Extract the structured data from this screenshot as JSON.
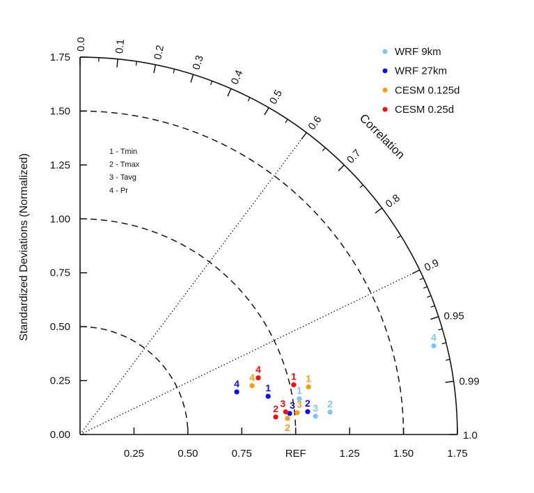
{
  "chart_data": {
    "type": "taylor",
    "ylabel": "Standardized Deviations (Normalized)",
    "corr_axis_label": "Correlation",
    "std_range": [
      0,
      1.75
    ],
    "y_ticks": [
      "0.00",
      "0.25",
      "0.50",
      "0.75",
      "1.00",
      "1.25",
      "1.50",
      "1.75"
    ],
    "y_tick_values": [
      0,
      0.25,
      0.5,
      0.75,
      1.0,
      1.25,
      1.5,
      1.75
    ],
    "x_ticks": [
      "0.25",
      "0.50",
      "0.75",
      "REF",
      "1.25",
      "1.50",
      "1.75"
    ],
    "x_tick_values": [
      0.25,
      0.5,
      0.75,
      1.0,
      1.25,
      1.5,
      1.75
    ],
    "corr_ticks": [
      "0.0",
      "0.1",
      "0.2",
      "0.3",
      "0.4",
      "0.5",
      "0.6",
      "0.7",
      "0.8",
      "0.9",
      "0.95",
      "0.99",
      "1.0"
    ],
    "corr_tick_values": [
      0,
      0.1,
      0.2,
      0.3,
      0.4,
      0.5,
      0.6,
      0.7,
      0.8,
      0.9,
      0.95,
      0.99,
      1.0
    ],
    "std_arcs_dashed": [
      0.5,
      1.0,
      1.5
    ],
    "corr_rays_dotted": [
      0.6,
      0.9
    ],
    "variables": [
      {
        "id": "1",
        "text": "1 - Tmin"
      },
      {
        "id": "2",
        "text": "2 - Tmax"
      },
      {
        "id": "3",
        "text": "3 - Tavg"
      },
      {
        "id": "4",
        "text": "4 - Pr"
      }
    ],
    "legend_position": "top-right",
    "series": [
      {
        "name": "WRF 9km",
        "color": "#80c4f7",
        "points": [
          {
            "label": "1",
            "std": 1.03,
            "corr": 0.987
          },
          {
            "label": "2",
            "std": 1.164,
            "corr": 0.996
          },
          {
            "label": "3",
            "std": 1.095,
            "corr": 0.997
          },
          {
            "label": "4",
            "std": 1.691,
            "corr": 0.97
          }
        ]
      },
      {
        "name": "WRF 27km",
        "color": "#0a0aff",
        "points": [
          {
            "label": "1",
            "std": 0.89,
            "corr": 0.98
          },
          {
            "label": "2",
            "std": 1.061,
            "corr": 0.995
          },
          {
            "label": "3",
            "std": 0.977,
            "corr": 0.995
          },
          {
            "label": "4",
            "std": 0.753,
            "corr": 0.965
          }
        ]
      },
      {
        "name": "CESM 0.125d",
        "color": "#ff9a10",
        "points": [
          {
            "label": "1",
            "std": 1.082,
            "corr": 0.979
          },
          {
            "label": "2",
            "std": 0.965,
            "corr": 0.997
          },
          {
            "label": "3",
            "std": 1.012,
            "corr": 0.995
          },
          {
            "label": "4",
            "std": 0.829,
            "corr": 0.962
          }
        ]
      },
      {
        "name": "CESM 0.25d",
        "color": "#ff0a0a",
        "points": [
          {
            "label": "1",
            "std": 1.017,
            "corr": 0.974
          },
          {
            "label": "2",
            "std": 0.911,
            "corr": 0.996
          },
          {
            "label": "3",
            "std": 0.959,
            "corr": 0.994
          },
          {
            "label": "4",
            "std": 0.867,
            "corr": 0.953
          }
        ]
      }
    ]
  }
}
